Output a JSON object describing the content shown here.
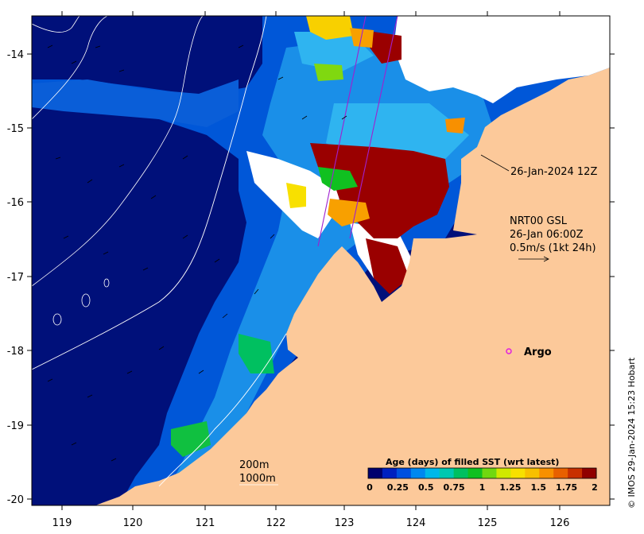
{
  "colors": {
    "deep_ocean": "#00107a",
    "ocean_blue": "#0050d8",
    "mid_blue": "#1a8fe8",
    "light_blue": "#2fb4f0",
    "land": "#fcc99a",
    "cloud_gap": "#ffffff",
    "old_sst": "#9a0000",
    "track": "#a020d0"
  },
  "axes": {
    "x_ticks": [
      "119",
      "120",
      "121",
      "122",
      "123",
      "124",
      "125",
      "126"
    ],
    "y_ticks": [
      "-14",
      "-15",
      "-16",
      "-17",
      "-18",
      "-19",
      "-20"
    ]
  },
  "annotations": {
    "sst_date": "26-Jan-2024 12Z",
    "current_product": "NRT00 GSL",
    "current_date": "26-Jan 06:00Z",
    "current_scale": "0.5m/s (1kt 24h)",
    "argo_label": "Argo"
  },
  "contours": {
    "label_200": "200m",
    "label_1000": "1000m"
  },
  "legend": {
    "title": "Age (days) of filled SST (wrt latest)",
    "ticks": [
      "0",
      "0.25",
      "0.5",
      "0.75",
      "1",
      "1.25",
      "1.5",
      "1.75",
      "2"
    ],
    "colors": [
      "#00006e",
      "#0020c0",
      "#0050e0",
      "#0088f0",
      "#00b8e8",
      "#00c8b0",
      "#00c060",
      "#10c020",
      "#70d810",
      "#d0e800",
      "#f8e000",
      "#f8c000",
      "#f89000",
      "#e86000",
      "#c83000",
      "#900000"
    ]
  },
  "credit": "© IMOS 29-Jan-2024 15:23 Hobart"
}
